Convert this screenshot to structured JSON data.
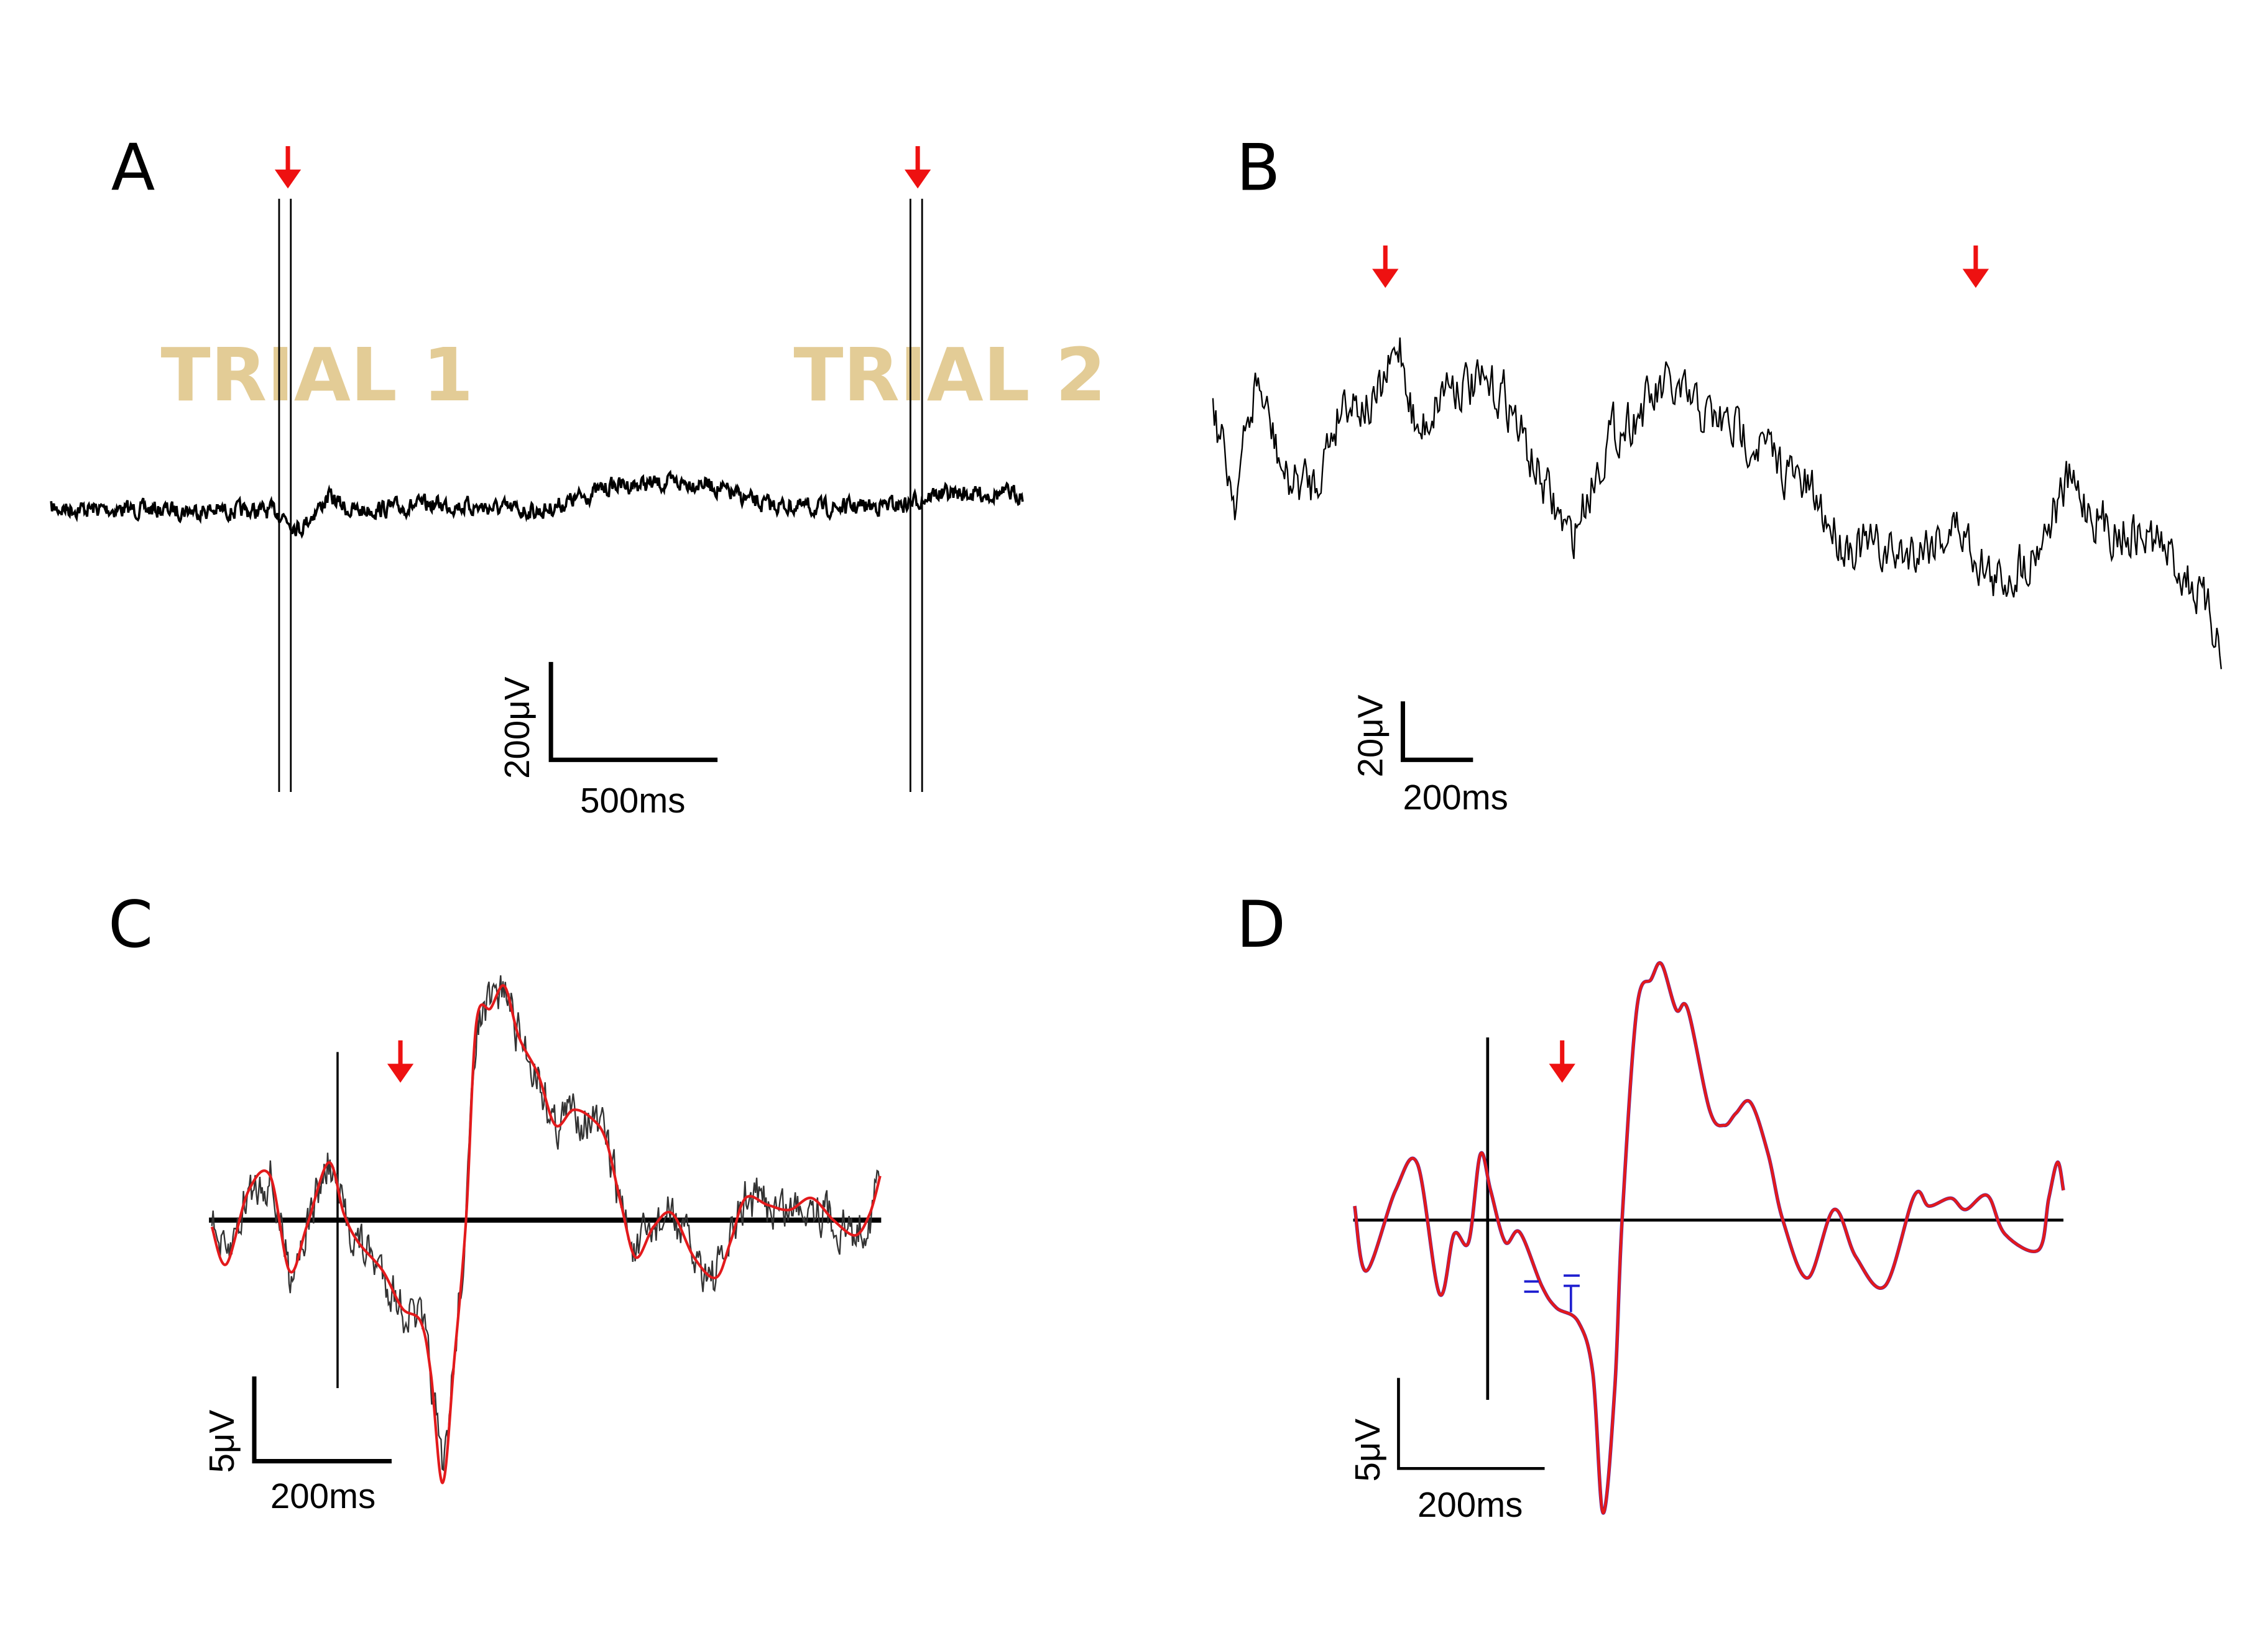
{
  "colors": {
    "trace": "#000000",
    "average": "#e31a1c",
    "error": "#1f1fd0",
    "marker": "#ee1111",
    "trial_label": "#e3cc96"
  },
  "chart_data": [
    {
      "panel": "A",
      "type": "line",
      "annotations": [
        "TRIAL 1",
        "TRIAL 2"
      ],
      "markers": [
        "down-arrow",
        "down-arrow"
      ],
      "scale_bar": {
        "y_label": "200μV",
        "x_label": "500ms"
      },
      "trace_ms_uV": [
        [
          0,
          -3
        ],
        [
          680,
          -9
        ],
        [
          746,
          -46
        ],
        [
          834,
          22
        ],
        [
          900,
          -9
        ],
        [
          1163,
          6
        ],
        [
          1471,
          -9
        ],
        [
          1690,
          46
        ],
        [
          1953,
          52
        ],
        [
          2129,
          6
        ],
        [
          2304,
          -3
        ],
        [
          2567,
          6
        ],
        [
          2655,
          28
        ],
        [
          2918,
          28
        ]
      ]
    },
    {
      "panel": "B",
      "type": "line",
      "markers": [
        "down-arrow",
        "down-arrow"
      ],
      "scale_bar": {
        "y_label": "20μV",
        "x_label": "200ms"
      },
      "trace_ms_uV": [
        [
          0,
          20
        ],
        [
          63,
          -10
        ],
        [
          125,
          30
        ],
        [
          209,
          -5
        ],
        [
          292,
          -5
        ],
        [
          375,
          25
        ],
        [
          459,
          20
        ],
        [
          534,
          42
        ],
        [
          584,
          10
        ],
        [
          667,
          30
        ],
        [
          834,
          25
        ],
        [
          917,
          0
        ],
        [
          1021,
          -25
        ],
        [
          1126,
          10
        ],
        [
          1293,
          27
        ],
        [
          1418,
          17
        ],
        [
          1543,
          10
        ],
        [
          1710,
          -10
        ],
        [
          1793,
          -25
        ],
        [
          1960,
          -30
        ],
        [
          2127,
          -20
        ],
        [
          2231,
          -40
        ],
        [
          2335,
          -30
        ],
        [
          2439,
          -5
        ],
        [
          2544,
          -20
        ],
        [
          2690,
          -25
        ],
        [
          2794,
          -40
        ],
        [
          2877,
          -60
        ]
      ]
    },
    {
      "panel": "C",
      "type": "line",
      "markers": [
        "down-arrow"
      ],
      "scale_bar": {
        "y_label": "5μV",
        "x_label": "200ms"
      },
      "average_ms_uV": [
        [
          -183,
          -0.4
        ],
        [
          -162,
          -2.6
        ],
        [
          -130,
          1.7
        ],
        [
          -98,
          2.6
        ],
        [
          -70,
          -3
        ],
        [
          -45,
          -0.4
        ],
        [
          -13,
          3.4
        ],
        [
          9,
          0.4
        ],
        [
          30,
          -1.3
        ],
        [
          66,
          -3
        ],
        [
          94,
          -5.2
        ],
        [
          121,
          -6
        ],
        [
          136,
          -9.1
        ],
        [
          153,
          -15.5
        ],
        [
          170,
          -8.2
        ],
        [
          187,
          0
        ],
        [
          202,
          11.6
        ],
        [
          223,
          12.5
        ],
        [
          243,
          13.8
        ],
        [
          264,
          10.8
        ],
        [
          292,
          8.6
        ],
        [
          317,
          5.6
        ],
        [
          343,
          6.5
        ],
        [
          370,
          6
        ],
        [
          391,
          4.7
        ],
        [
          413,
          0.9
        ],
        [
          434,
          -2.2
        ],
        [
          460,
          -0.4
        ],
        [
          487,
          0.4
        ],
        [
          519,
          -2.2
        ],
        [
          551,
          -3.4
        ],
        [
          572,
          -1.3
        ],
        [
          594,
          1.3
        ],
        [
          626,
          0.9
        ],
        [
          658,
          0.6
        ],
        [
          690,
          1.3
        ],
        [
          722,
          0
        ],
        [
          754,
          -0.9
        ],
        [
          775,
          0.4
        ],
        [
          790,
          2.6
        ]
      ]
    },
    {
      "panel": "D",
      "type": "line",
      "markers": [
        "down-arrow"
      ],
      "scale_bar": {
        "y_label": "5μV",
        "x_label": "200ms"
      },
      "average_ms_uV": [
        [
          -182,
          0.8
        ],
        [
          -166,
          -2.9
        ],
        [
          -126,
          1.7
        ],
        [
          -96,
          3.2
        ],
        [
          -66,
          -4.2
        ],
        [
          -46,
          -0.8
        ],
        [
          -26,
          -1.25
        ],
        [
          -10,
          3.75
        ],
        [
          4,
          1.7
        ],
        [
          24,
          -1.25
        ],
        [
          44,
          -0.7
        ],
        [
          74,
          -3.75
        ],
        [
          94,
          -5
        ],
        [
          124,
          -5.8
        ],
        [
          144,
          -8.75
        ],
        [
          158,
          -16.7
        ],
        [
          174,
          -9.6
        ],
        [
          184,
          0
        ],
        [
          204,
          12
        ],
        [
          224,
          13.75
        ],
        [
          238,
          14.6
        ],
        [
          258,
          12
        ],
        [
          274,
          12
        ],
        [
          304,
          6.25
        ],
        [
          324,
          5.4
        ],
        [
          340,
          6.1
        ],
        [
          360,
          6.7
        ],
        [
          384,
          3.75
        ],
        [
          404,
          0
        ],
        [
          438,
          -3.3
        ],
        [
          474,
          0.6
        ],
        [
          504,
          -2.1
        ],
        [
          544,
          -3.75
        ],
        [
          584,
          1.4
        ],
        [
          604,
          0.8
        ],
        [
          634,
          1.25
        ],
        [
          654,
          0.6
        ],
        [
          684,
          1.4
        ],
        [
          708,
          -0.8
        ],
        [
          754,
          -1.7
        ],
        [
          768,
          1.25
        ],
        [
          780,
          3.3
        ],
        [
          788,
          1.7
        ]
      ]
    }
  ]
}
